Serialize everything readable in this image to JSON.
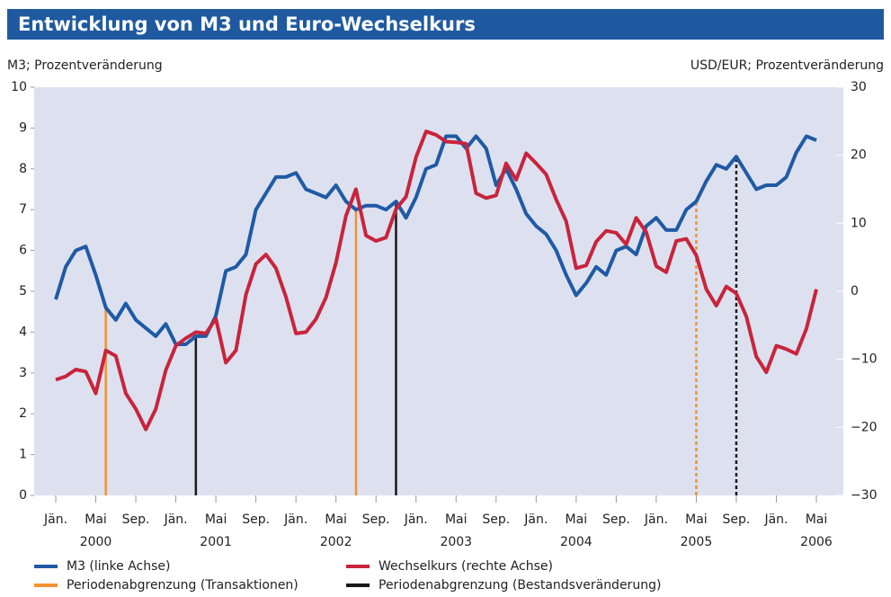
{
  "chart_data": {
    "type": "line",
    "title": "Entwicklung von M3 und Euro-Wechselkurs",
    "y_label": "M3; Prozentveränderung",
    "y2_label": "USD/EUR; Prozentveränderung",
    "categories": [
      "Jän.",
      null,
      null,
      null,
      "Mai",
      null,
      null,
      null,
      "Sep.",
      null,
      null,
      null,
      "Jän.",
      null,
      null,
      null,
      "Mai",
      null,
      null,
      null,
      "Sep.",
      null,
      null,
      null,
      "Jän.",
      null,
      null,
      null,
      "Mai",
      null,
      null,
      null,
      "Sep.",
      null,
      null,
      null,
      "Jän.",
      null,
      null,
      null,
      "Mai",
      null,
      null,
      null,
      "Sep.",
      null,
      null,
      null,
      "Jän.",
      null,
      null,
      null,
      "Mai",
      null,
      null,
      null,
      "Sep.",
      null,
      null,
      null,
      "Jän.",
      null,
      null,
      null,
      "Mai",
      null,
      null,
      null,
      "Sep.",
      null,
      null,
      null,
      "Jän.",
      null,
      null,
      null,
      "Mai"
    ],
    "years": [
      "2000",
      "2001",
      "2002",
      "2003",
      "2004",
      "2005",
      "2006"
    ],
    "ylim": [
      0,
      10
    ],
    "yticks": [
      0,
      1,
      2,
      3,
      4,
      5,
      6,
      7,
      8,
      9,
      10
    ],
    "y2lim": [
      -30,
      30
    ],
    "y2ticks": [
      {
        "value": -30,
        "label": "−30"
      },
      {
        "value": -20,
        "label": "−20"
      },
      {
        "value": -10,
        "label": "−10"
      },
      0,
      10,
      20,
      30
    ],
    "series": [
      {
        "name": "M3 (linke Achse)",
        "color": "#1f5aa5",
        "values": [
          4.8,
          5.6,
          6.0,
          6.1,
          5.4,
          4.6,
          4.3,
          4.7,
          4.3,
          4.1,
          3.9,
          4.2,
          3.7,
          3.7,
          3.9,
          3.9,
          4.4,
          5.5,
          5.6,
          5.9,
          7.0,
          7.4,
          7.8,
          7.8,
          7.9,
          7.5,
          7.4,
          7.3,
          7.6,
          7.2,
          7.0,
          7.1,
          7.1,
          7.0,
          7.2,
          6.8,
          7.3,
          8.0,
          8.1,
          8.8,
          8.8,
          8.5,
          8.8,
          8.5,
          7.6,
          8.0,
          7.5,
          6.9,
          6.6,
          6.4,
          6.0,
          5.4,
          4.9,
          5.2,
          5.6,
          5.4,
          6.0,
          6.1,
          5.9,
          6.6,
          6.8,
          6.5,
          6.5,
          7.0,
          7.2,
          7.7,
          8.1,
          8.0,
          8.3,
          7.9,
          7.5,
          7.6,
          7.6,
          7.8,
          8.4,
          8.8,
          8.7
        ]
      },
      {
        "name": "Wechselkurs (rechte Achse)",
        "color": "#c8243c",
        "axis": "y2",
        "values": [
          -13,
          -12.5,
          -11.5,
          -11.8,
          -15,
          -8.7,
          -9.5,
          -15,
          -17.3,
          -20.3,
          -17.3,
          -11.6,
          -8,
          -6.9,
          -6,
          -6.2,
          -4,
          -10.5,
          -8.7,
          -0.5,
          4,
          5.4,
          3.4,
          -0.8,
          -6.2,
          -6,
          -4.1,
          -0.9,
          4.2,
          11.1,
          15,
          8.2,
          7.4,
          7.9,
          12.1,
          13.9,
          19.7,
          23.5,
          23,
          22,
          21.9,
          21.7,
          14.4,
          13.7,
          14.1,
          18.8,
          16.4,
          20.3,
          18.8,
          17.2,
          13.5,
          10.3,
          3.4,
          3.8,
          7.3,
          8.9,
          8.6,
          6.9,
          10.8,
          8.7,
          3.7,
          2.8,
          7.4,
          7.7,
          5.3,
          0.3,
          -2.1,
          0.7,
          -0.3,
          -3.7,
          -9.6,
          -11.9,
          -8,
          -8.5,
          -9.2,
          -5.5,
          0.3
        ]
      }
    ],
    "boundaries": [
      {
        "name": "Periodenabgrenzung (Transaktionen)",
        "color": "#f39233",
        "at": [
          5,
          30,
          64
        ],
        "dashed": [
          false,
          false,
          true
        ]
      },
      {
        "name": "Periodenabgrenzung (Bestandsveränderung)",
        "color": "#1a1a1a",
        "at": [
          14,
          34,
          68
        ],
        "dashed": [
          false,
          false,
          true
        ]
      }
    ]
  }
}
